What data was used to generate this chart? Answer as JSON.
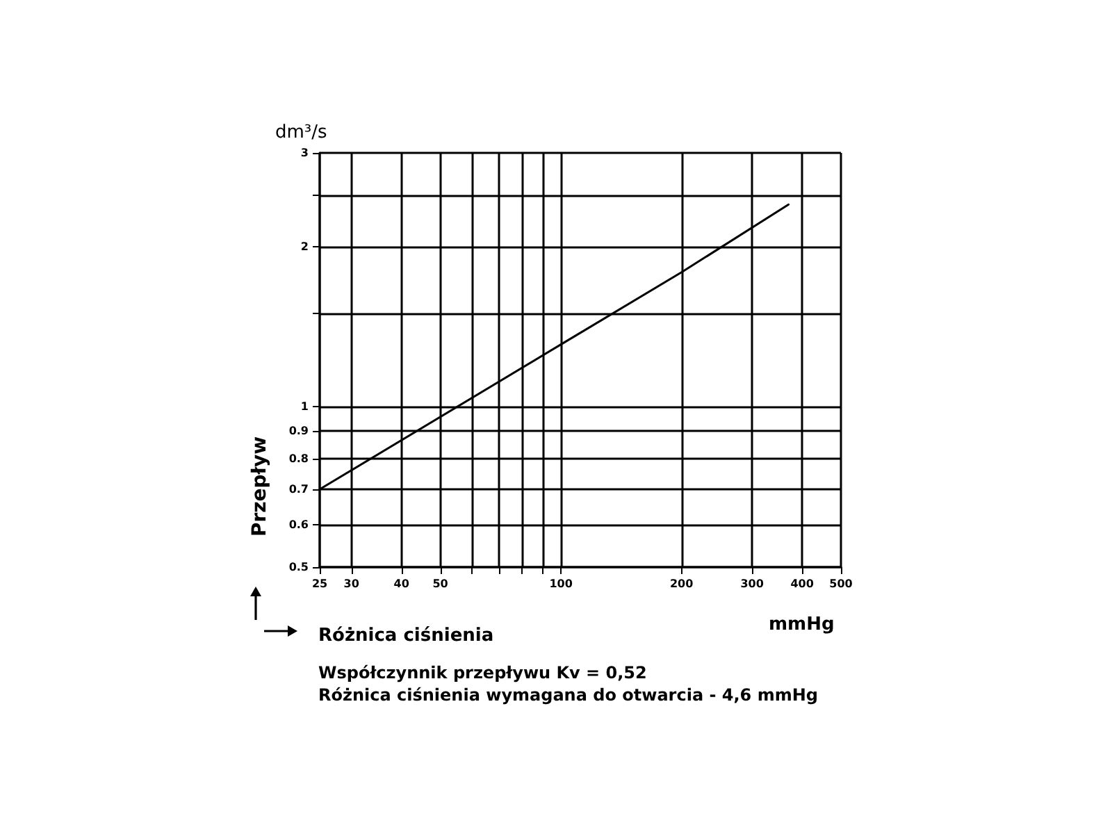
{
  "chart_data": {
    "type": "line",
    "xlabel": "Różnica ciśnienia",
    "ylabel": "Przepływ",
    "annotations": [
      "dm³/s",
      "mmHg",
      "Współczynnik przepływu Kv = 0,52",
      "Różnica ciśnienia wymagana do otwarcia - 4,6 mmHg"
    ],
    "log": "xy",
    "x": [
      25,
      100,
      200,
      370
    ],
    "series": [
      {
        "color": "#000000",
        "values": [
          0.7,
          1.31,
          1.79,
          2.4
        ]
      }
    ],
    "xlim": [
      25,
      500
    ],
    "xticks": [
      25,
      30,
      40,
      50,
      {
        "value": 60,
        "label": null
      },
      {
        "value": 70,
        "label": null
      },
      {
        "value": 80,
        "label": null
      },
      {
        "value": 90,
        "label": null
      },
      100,
      200,
      300,
      400,
      500
    ],
    "ylim": [
      0.5,
      3
    ],
    "yticks": [
      0.5,
      0.6,
      0.7,
      0.8,
      0.9,
      1,
      {
        "value": 1.5,
        "label": null
      },
      2,
      {
        "value": 2.5,
        "label": null
      },
      3
    ],
    "grid": true,
    "marker": "none",
    "line_style": "solid"
  }
}
